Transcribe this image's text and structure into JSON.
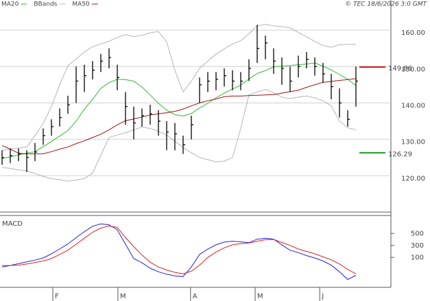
{
  "chart_data": {
    "type": "ohlc",
    "copyright": "© TEC 18/6/2026 3:0 GMT",
    "xlim": [
      -0.25,
      47.25
    ],
    "xticks": [
      {
        "value": 6.17,
        "label": "F"
      },
      {
        "value": 14.08,
        "label": "M"
      },
      {
        "value": 22.9,
        "label": "A"
      },
      {
        "value": 30.75,
        "label": "M"
      },
      {
        "value": 38.6,
        "label": "J"
      }
    ],
    "ylim": [
      110,
      168.3
    ],
    "yticks": [
      {
        "value": 120,
        "label": "120.00"
      },
      {
        "value": 130,
        "label": "130.00"
      },
      {
        "value": 140,
        "label": "140.00"
      },
      {
        "value": 150,
        "label": "150.00"
      },
      {
        "value": 160,
        "label": "160.00"
      }
    ],
    "grid": true,
    "ohlc": {
      "color": "#000000",
      "high": [
        127,
        127.5,
        127.5,
        127,
        129,
        133,
        135.5,
        138.5,
        142,
        150,
        150.5,
        151.5,
        153.5,
        155,
        150.5,
        143,
        139,
        138.5,
        139.5,
        138,
        135,
        134.5,
        131,
        136.5,
        147,
        148.5,
        148.5,
        149.5,
        149,
        148.5,
        152,
        161.5,
        158.5,
        155,
        152.5,
        150,
        153,
        154,
        152.5,
        151,
        148,
        144,
        138,
        150
      ],
      "low": [
        123,
        123.5,
        124,
        121,
        124,
        128.5,
        131,
        133.5,
        137,
        140,
        143,
        146.5,
        148.5,
        149.5,
        143.5,
        134,
        130,
        133.5,
        134,
        131,
        127,
        127,
        126,
        130,
        140,
        143,
        143.5,
        144.5,
        143.5,
        143.5,
        146,
        151,
        152,
        148,
        145,
        143,
        147,
        149.5,
        147.5,
        145.5,
        141,
        136,
        133.5,
        139
      ],
      "close": [
        125,
        125.5,
        126,
        125,
        126.5,
        131,
        133.5,
        136,
        139.5,
        146,
        147.5,
        149,
        151.5,
        152.5,
        147,
        139,
        134.5,
        136.5,
        137,
        135,
        132,
        131.5,
        128.5,
        134,
        145,
        146,
        146.5,
        147.5,
        146,
        146,
        149.5,
        155,
        156.5,
        151.5,
        149.5,
        146,
        150,
        152,
        150,
        148,
        144.5,
        140,
        135.5,
        146
      ]
    },
    "series": [
      {
        "name": "MA20",
        "color": "#2db82d",
        "values": [
          124.7,
          125.2,
          125.7,
          126.2,
          126.6,
          128.0,
          129.4,
          130.9,
          132.4,
          135.0,
          138.3,
          141.0,
          144.0,
          145.6,
          146.5,
          146.4,
          146.0,
          144.4,
          142.2,
          139.9,
          138.0,
          136.8,
          136.4,
          137.1,
          138.6,
          139.9,
          141.4,
          142.7,
          143.8,
          144.9,
          146.6,
          148.1,
          148.9,
          149.9,
          150.1,
          150.3,
          150.5,
          150.7,
          151.0,
          150.1,
          149.1,
          147.8,
          146.5,
          144.8
        ]
      },
      {
        "name": "BBands",
        "color": "#b4b4b4",
        "values": [
          127.0,
          127.3,
          127.6,
          127.9,
          131.0,
          134.4,
          139.0,
          145.0,
          150.2,
          152.1,
          154.0,
          155.5,
          156.2,
          157.0,
          158.0,
          158.8,
          158.2,
          158.6,
          159.3,
          159.6,
          156.8,
          149.0,
          143.0,
          146.0,
          149.5,
          151.5,
          153.4,
          154.9,
          156.2,
          157.1,
          159.0,
          161.2,
          161.6,
          161.2,
          161.0,
          160.6,
          159.4,
          158.2,
          156.9,
          155.8,
          155.3,
          156.0,
          156.1,
          156.1
        ],
        "lower": [
          122.3,
          122.0,
          121.6,
          121.3,
          120.6,
          119.8,
          119.2,
          118.9,
          118.5,
          118.8,
          119.2,
          120.7,
          125.6,
          130.5,
          131.2,
          131.8,
          132.6,
          133.4,
          133.0,
          132.2,
          131.2,
          129.4,
          127.8,
          126.3,
          125.0,
          124.4,
          123.8,
          124.0,
          125.0,
          133.0,
          142.2,
          143.0,
          143.7,
          142.8,
          141.6,
          141.2,
          141.6,
          141.9,
          141.4,
          140.6,
          139.2,
          135.0,
          133.2,
          132.6
        ]
      },
      {
        "name": "MA50",
        "color": "#a01010",
        "values": [
          128.3,
          127.3,
          126.2,
          126.0,
          126.0,
          126.0,
          126.6,
          127.3,
          127.9,
          128.8,
          129.6,
          130.5,
          131.4,
          132.6,
          134.0,
          135.1,
          135.6,
          136.1,
          136.7,
          137.0,
          137.3,
          137.7,
          138.3,
          139.2,
          140.0,
          140.6,
          141.1,
          141.7,
          141.9,
          141.9,
          142.0,
          142.1,
          142.2,
          142.3,
          142.7,
          143.1,
          143.5,
          144.3,
          145.0,
          145.7,
          145.9,
          146.2,
          146.4,
          146.7
        ]
      }
    ],
    "levels": [
      {
        "value": 149.86,
        "color": "#dd1111"
      },
      {
        "value": 126.29,
        "color": "#119911"
      }
    ],
    "macd": {
      "title": "MACD",
      "ylim": [
        -400,
        800
      ],
      "yticks": [
        100,
        300,
        500
      ],
      "series": [
        {
          "color": "#2020dd",
          "values": [
            -60,
            -35,
            -5,
            25,
            55,
            90,
            160,
            240,
            325,
            430,
            530,
            620,
            660,
            645,
            560,
            320,
            80,
            10,
            -80,
            -140,
            -180,
            -210,
            -220,
            -60,
            150,
            240,
            310,
            355,
            370,
            360,
            345,
            405,
            420,
            405,
            310,
            220,
            180,
            130,
            90,
            40,
            -30,
            -140,
            -270,
            -200
          ]
        },
        {
          "color": "#dd2020",
          "values": [
            -35,
            -35,
            -30,
            -10,
            15,
            40,
            80,
            150,
            220,
            320,
            420,
            520,
            590,
            625,
            600,
            430,
            280,
            140,
            20,
            -60,
            -110,
            -150,
            -175,
            -130,
            -30,
            100,
            190,
            260,
            310,
            330,
            340,
            370,
            395,
            400,
            350,
            300,
            240,
            200,
            160,
            110,
            60,
            -10,
            -100,
            -175
          ]
        }
      ]
    }
  }
}
